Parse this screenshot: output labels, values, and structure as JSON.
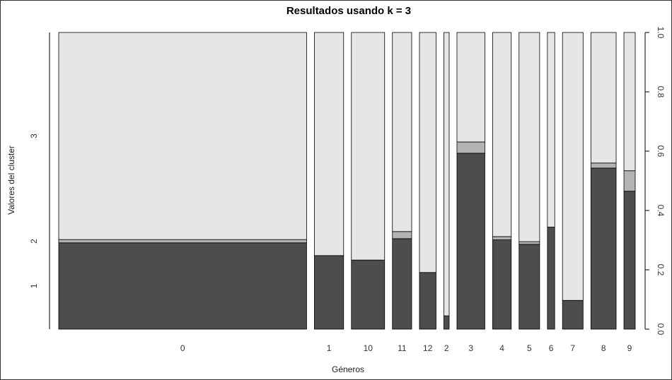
{
  "chart_data": {
    "type": "bar",
    "title": "Resultados usando k = 3",
    "xlabel": "Géneros",
    "ylabel": "Valores del cluster",
    "variant": "spineplot",
    "categories": [
      "0",
      "1",
      "10",
      "11",
      "12",
      "2",
      "3",
      "4",
      "5",
      "6",
      "7",
      "8",
      "9"
    ],
    "category_widths": [
      0.373,
      0.044,
      0.05,
      0.029,
      0.025,
      0.008,
      0.042,
      0.028,
      0.031,
      0.011,
      0.031,
      0.038,
      0.017
    ],
    "series": [
      {
        "value": "1",
        "values": [
          0.291,
          0.248,
          0.233,
          0.305,
          0.191,
          0.045,
          0.593,
          0.301,
          0.286,
          0.344,
          0.097,
          0.543,
          0.465
        ]
      },
      {
        "value": "2",
        "values": [
          0.011,
          0.0,
          0.0,
          0.024,
          0.0,
          0.0,
          0.038,
          0.011,
          0.009,
          0.0,
          0.0,
          0.017,
          0.069
        ]
      },
      {
        "value": "3",
        "values": [
          0.698,
          0.752,
          0.767,
          0.671,
          0.809,
          0.955,
          0.369,
          0.688,
          0.705,
          0.656,
          0.903,
          0.44,
          0.466
        ]
      }
    ],
    "colors": [
      "#4d4d4d",
      "#b3b3b3",
      "#e6e6e6"
    ],
    "left_axis_labels": [
      "1",
      "2",
      "3"
    ],
    "right_axis_ticks": [
      "0.0",
      "0.2",
      "0.4",
      "0.6",
      "0.8",
      "1.0"
    ],
    "ylim": [
      0,
      1
    ],
    "grid": false,
    "legend": "none"
  }
}
